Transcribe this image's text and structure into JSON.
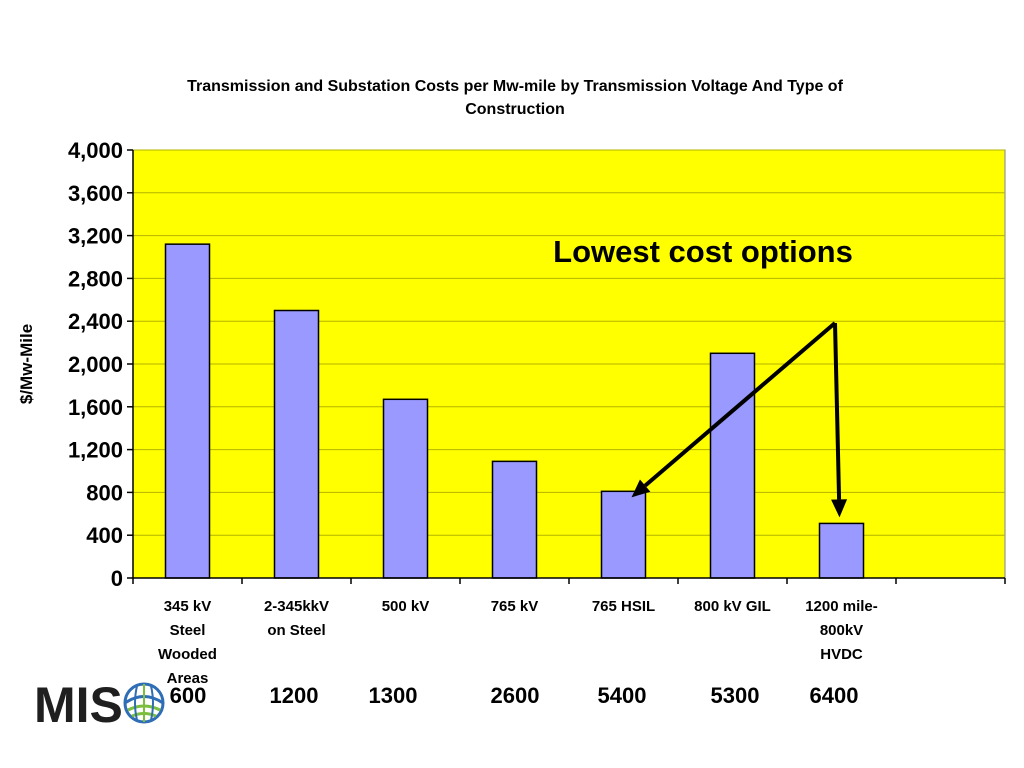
{
  "chart_data": {
    "type": "bar",
    "title": "Transmission and Substation Costs per Mw-mile by Transmission Voltage And Type of Construction",
    "title_lines": [
      "Transmission and Substation Costs per Mw-mile by Transmission Voltage And Type of",
      "Construction"
    ],
    "ylabel": "$/Mw-Mile",
    "xlabel": "",
    "ylim": [
      0,
      4000
    ],
    "yticks": [
      "0",
      "400",
      "800",
      "1,200",
      "1,600",
      "2,000",
      "2,400",
      "2,800",
      "3,200",
      "3,600",
      "4,000"
    ],
    "ytick_values": [
      0,
      400,
      800,
      1200,
      1600,
      2000,
      2400,
      2800,
      3200,
      3600,
      4000
    ],
    "grid": true,
    "plot_background": "#ffff00",
    "bar_color": "#9999ff",
    "categories": [
      [
        "345 kV",
        "Steel",
        "Wooded",
        "Areas"
      ],
      [
        "2-345kkV",
        "on Steel"
      ],
      [
        "500 kV"
      ],
      [
        "765 kV"
      ],
      [
        "765 HSIL"
      ],
      [
        "800 kV GIL"
      ],
      [
        "1200 mile-",
        "800kV",
        "HVDC"
      ],
      []
    ],
    "values": [
      3120,
      2500,
      1670,
      1090,
      810,
      2100,
      510,
      null
    ],
    "capacity_row": [
      "600",
      "1200",
      "1300",
      "2600",
      "5400",
      "5300",
      "6400"
    ],
    "annotation": {
      "text": "Lowest cost options",
      "arrow_targets": [
        "765 HSIL",
        "1200 mile- 800kV HVDC"
      ]
    }
  },
  "logo": {
    "text": "MIS",
    "name": "MISO",
    "colors": [
      "#1f1f1f",
      "#2f6db5",
      "#7cbf3f"
    ]
  }
}
